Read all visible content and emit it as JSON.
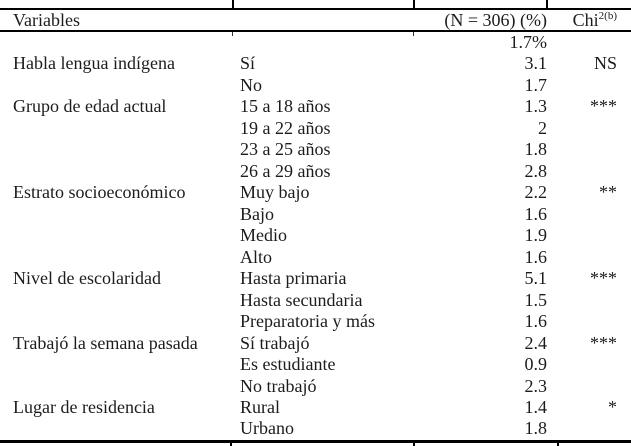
{
  "page": {
    "background": "#ffffff",
    "text_color": "#1c1c1c",
    "rule_color": "#000000"
  },
  "header": {
    "variables": "Variables",
    "n_percent": "(N = 306) (%)",
    "chi_base": "Chi",
    "chi_sup": "2(b)"
  },
  "rows": [
    {
      "variable": "",
      "category": "",
      "value": "1.7%",
      "sig": ""
    },
    {
      "variable": "Habla lengua indígena",
      "category": "Sí",
      "value": "3.1",
      "sig": "NS"
    },
    {
      "variable": "",
      "category": "No",
      "value": "1.7",
      "sig": ""
    },
    {
      "variable": "Grupo de edad actual",
      "category": "15 a 18 años",
      "value": "1.3",
      "sig": "***"
    },
    {
      "variable": "",
      "category": "19 a 22 años",
      "value": "2",
      "sig": ""
    },
    {
      "variable": "",
      "category": "23 a 25 años",
      "value": "1.8",
      "sig": ""
    },
    {
      "variable": "",
      "category": "26 a 29 años",
      "value": "2.8",
      "sig": ""
    },
    {
      "variable": "Estrato socioeconómico",
      "category": "Muy bajo",
      "value": "2.2",
      "sig": "**"
    },
    {
      "variable": "",
      "category": "Bajo",
      "value": "1.6",
      "sig": ""
    },
    {
      "variable": "",
      "category": "Medio",
      "value": "1.9",
      "sig": ""
    },
    {
      "variable": "",
      "category": "Alto",
      "value": "1.6",
      "sig": ""
    },
    {
      "variable": "Nivel de escolaridad",
      "category": "Hasta primaria",
      "value": "5.1",
      "sig": "***"
    },
    {
      "variable": "",
      "category": "Hasta secundaria",
      "value": "1.5",
      "sig": ""
    },
    {
      "variable": "",
      "category": "Preparatoria y más",
      "value": "1.6",
      "sig": ""
    },
    {
      "variable": "Trabajó la semana pasada",
      "category": "Sí trabajó",
      "value": "2.4",
      "sig": "***"
    },
    {
      "variable": "",
      "category": "Es estudiante",
      "value": "0.9",
      "sig": ""
    },
    {
      "variable": "",
      "category": "No trabajó",
      "value": "2.3",
      "sig": ""
    },
    {
      "variable": "Lugar de residencia",
      "category": "Rural",
      "value": "1.4",
      "sig": "*"
    },
    {
      "variable": "",
      "category": "Urbano",
      "value": "1.8",
      "sig": ""
    }
  ]
}
